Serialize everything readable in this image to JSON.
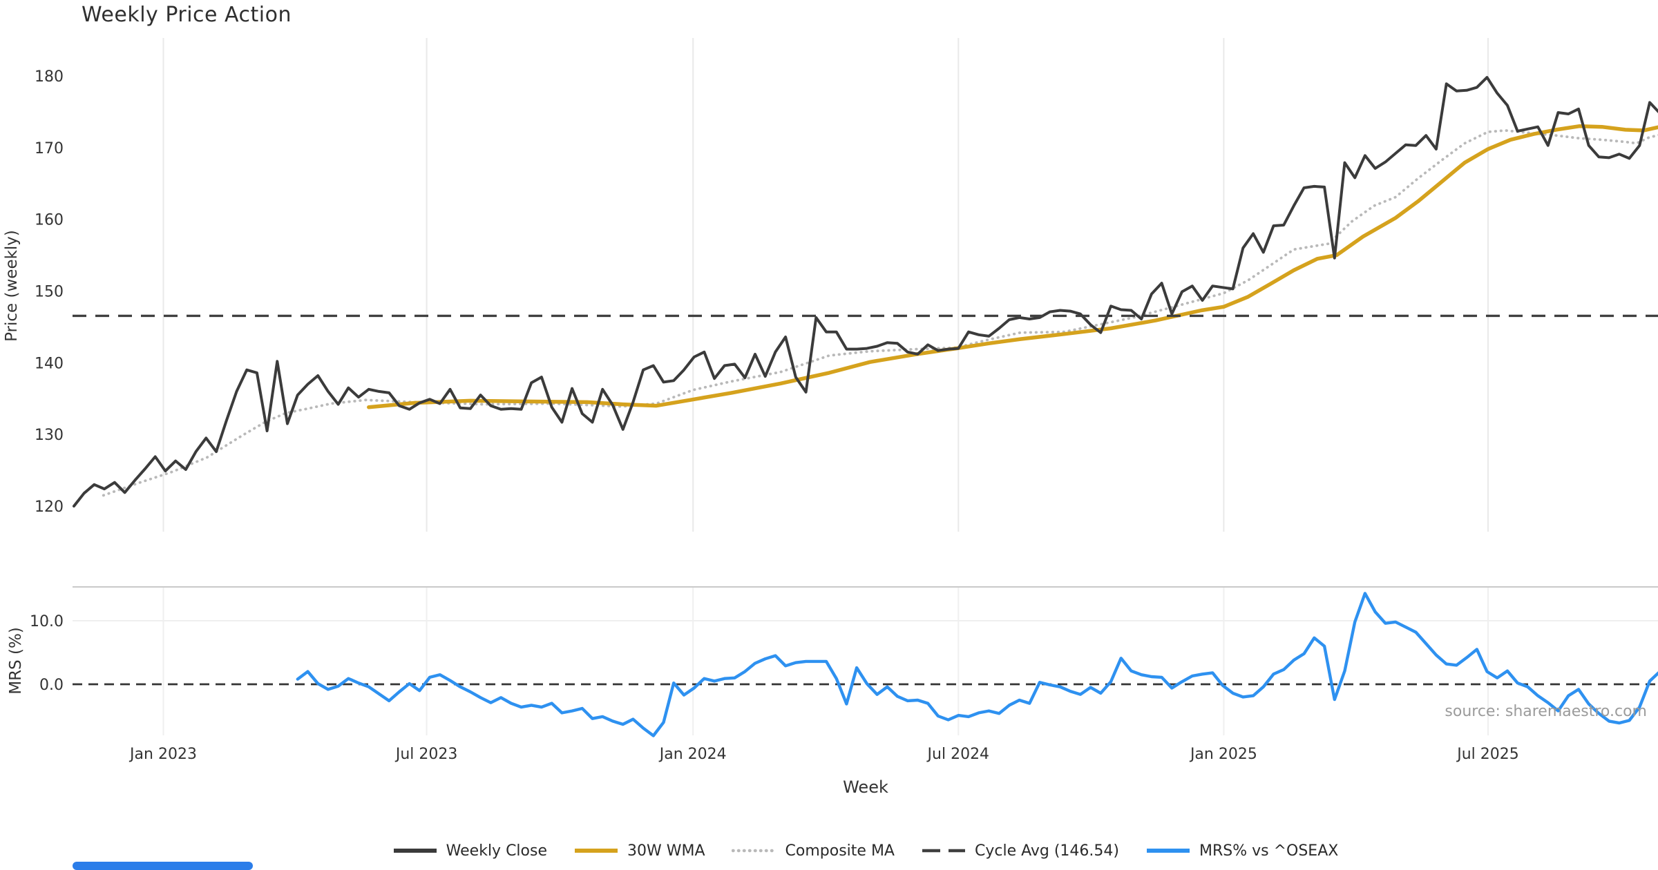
{
  "title": "Weekly Price Action",
  "source_note": "source: sharemaestro.com",
  "colors": {
    "weekly_close": "#3b3b3b",
    "wma": "#d5a21d",
    "composite": "#b9b9b9",
    "cycle_avg": "#3f3f3f",
    "mrs": "#2e91f0",
    "grid": "#e9e9e9",
    "grid_faint": "#efefef",
    "spine": "#c9c9c9",
    "text": "#333333",
    "muted": "#9b9b9b",
    "scrollbar": "#2b7de9"
  },
  "legend": {
    "items": [
      {
        "label": "Weekly Close",
        "series": "weekly_close",
        "style": "solid"
      },
      {
        "label": "30W WMA",
        "series": "wma",
        "style": "solid"
      },
      {
        "label": "Composite MA",
        "series": "composite",
        "style": "dotted"
      },
      {
        "label": "Cycle Avg (146.54)",
        "series": "cycle_avg",
        "style": "dashed"
      },
      {
        "label": "MRS% vs ^OSEAX",
        "series": "mrs",
        "style": "solid"
      }
    ]
  },
  "chart_data": {
    "type": "line",
    "x": {
      "label": "Week",
      "ticks": [
        {
          "label": "Jan 2023",
          "week": 8.8
        },
        {
          "label": "Jul 2023",
          "week": 34.7
        },
        {
          "label": "Jan 2024",
          "week": 60.9
        },
        {
          "label": "Jul 2024",
          "week": 87.0
        },
        {
          "label": "Jan 2025",
          "week": 113.1
        },
        {
          "label": "Jul 2025",
          "week": 139.1
        }
      ],
      "weeks_total": 157
    },
    "price_panel": {
      "ylabel": "Price (weekly)",
      "yticks": [
        {
          "v": 180,
          "label": "180"
        },
        {
          "v": 170,
          "label": "170"
        },
        {
          "v": 160,
          "label": "160"
        },
        {
          "v": 150,
          "label": "150"
        },
        {
          "v": 140,
          "label": "140"
        },
        {
          "v": 130,
          "label": "130"
        },
        {
          "v": 120,
          "label": "120"
        }
      ],
      "cycle_avg": 146.54,
      "weekly_close": {
        "name": "Weekly Close",
        "start_week": 0,
        "values": [
          120.0,
          121.8,
          123.0,
          122.4,
          123.3,
          121.9,
          123.6,
          125.2,
          126.9,
          124.9,
          126.3,
          125.1,
          127.6,
          129.5,
          127.6,
          131.9,
          136.0,
          139.0,
          138.6,
          130.5,
          140.2,
          131.5,
          135.5,
          137.0,
          138.2,
          136.0,
          134.2,
          136.5,
          135.2,
          136.3,
          136.0,
          135.8,
          134.0,
          133.5,
          134.4,
          134.9,
          134.3,
          136.3,
          133.7,
          133.6,
          135.5,
          134.0,
          133.5,
          133.6,
          133.5,
          137.2,
          138.0,
          133.8,
          131.7,
          136.4,
          132.9,
          131.7,
          136.3,
          134.1,
          130.7,
          134.5,
          139.0,
          139.6,
          137.3,
          137.5,
          139.0,
          140.8,
          141.5,
          137.8,
          139.6,
          139.8,
          137.9,
          141.2,
          138.1,
          141.5,
          143.6,
          138.0,
          135.9,
          146.3,
          144.3,
          144.3,
          141.9,
          141.9,
          142.0,
          142.3,
          142.8,
          142.7,
          141.5,
          141.2,
          142.5,
          141.7,
          141.9,
          142.0,
          144.3,
          143.9,
          143.7,
          144.8,
          146.0,
          146.3,
          146.1,
          146.3,
          147.1,
          147.3,
          147.2,
          146.8,
          145.3,
          144.2,
          147.9,
          147.4,
          147.3,
          146.1,
          149.6,
          151.1,
          146.8,
          149.9,
          150.7,
          148.7,
          150.7,
          150.5,
          150.3,
          156.0,
          158.0,
          155.4,
          159.1,
          159.2,
          161.9,
          164.4,
          164.6,
          164.5,
          154.6,
          167.9,
          165.8,
          168.9,
          167.1,
          168.0,
          169.2,
          170.4,
          170.3,
          171.7,
          169.8,
          178.9,
          177.9,
          178.0,
          178.4,
          179.8,
          177.6,
          175.9,
          172.3,
          172.6,
          172.9,
          170.3,
          174.9,
          174.7,
          175.4,
          170.3,
          168.7,
          168.6,
          169.1,
          168.5,
          170.3,
          176.3,
          174.8
        ]
      },
      "wma30": {
        "name": "30W WMA",
        "points": [
          [
            29,
            133.8
          ],
          [
            33.5,
            134.4
          ],
          [
            39,
            134.7
          ],
          [
            44.4,
            134.6
          ],
          [
            50.5,
            134.5
          ],
          [
            54,
            134.2
          ],
          [
            57.3,
            134.0
          ],
          [
            61,
            134.9
          ],
          [
            64.7,
            135.8
          ],
          [
            69.5,
            137.1
          ],
          [
            74.3,
            138.6
          ],
          [
            78.3,
            140.1
          ],
          [
            82.9,
            141.2
          ],
          [
            86.8,
            142.0
          ],
          [
            90,
            142.7
          ],
          [
            93.1,
            143.3
          ],
          [
            97.4,
            144.0
          ],
          [
            102,
            144.8
          ],
          [
            106.4,
            145.9
          ],
          [
            110.9,
            147.3
          ],
          [
            113.1,
            147.8
          ],
          [
            115.5,
            149.2
          ],
          [
            117.7,
            151.0
          ],
          [
            120,
            152.9
          ],
          [
            122.3,
            154.5
          ],
          [
            124.2,
            155.0
          ],
          [
            126.8,
            157.6
          ],
          [
            130,
            160.2
          ],
          [
            132.2,
            162.5
          ],
          [
            134.5,
            165.2
          ],
          [
            136.8,
            167.9
          ],
          [
            139.1,
            169.8
          ],
          [
            141.3,
            171.1
          ],
          [
            143.6,
            171.9
          ],
          [
            145.8,
            172.5
          ],
          [
            148.1,
            173.0
          ],
          [
            150.3,
            172.9
          ],
          [
            152.6,
            172.5
          ],
          [
            154.4,
            172.4
          ],
          [
            156,
            172.9
          ]
        ]
      },
      "composite": {
        "name": "Composite MA",
        "points": [
          [
            2.9,
            121.5
          ],
          [
            6.3,
            123.2
          ],
          [
            9.7,
            124.8
          ],
          [
            13.1,
            126.8
          ],
          [
            16.5,
            129.8
          ],
          [
            18.9,
            131.8
          ],
          [
            20.9,
            133.0
          ],
          [
            23,
            133.6
          ],
          [
            25.3,
            134.3
          ],
          [
            28.7,
            134.8
          ],
          [
            33.5,
            134.5
          ],
          [
            40.3,
            134.2
          ],
          [
            47.1,
            134.3
          ],
          [
            53.9,
            133.9
          ],
          [
            57.3,
            134.3
          ],
          [
            60.9,
            136.2
          ],
          [
            64.7,
            137.4
          ],
          [
            69.5,
            138.7
          ],
          [
            74.3,
            141.0
          ],
          [
            78.3,
            141.6
          ],
          [
            82.9,
            141.9
          ],
          [
            86.8,
            142.1
          ],
          [
            89.9,
            143.2
          ],
          [
            93.1,
            144.2
          ],
          [
            97.4,
            144.3
          ],
          [
            104.2,
            146.3
          ],
          [
            108.7,
            148.0
          ],
          [
            113.1,
            149.7
          ],
          [
            115.5,
            151.5
          ],
          [
            117.7,
            153.6
          ],
          [
            120,
            155.8
          ],
          [
            123.4,
            156.6
          ],
          [
            125.7,
            159.7
          ],
          [
            127.9,
            161.9
          ],
          [
            130,
            163.1
          ],
          [
            132.2,
            165.7
          ],
          [
            134.5,
            168.2
          ],
          [
            136.8,
            170.6
          ],
          [
            139.1,
            172.2
          ],
          [
            140.8,
            172.4
          ],
          [
            143.6,
            172.0
          ],
          [
            145.8,
            171.7
          ],
          [
            148.1,
            171.3
          ],
          [
            150.3,
            171.1
          ],
          [
            152.6,
            170.8
          ],
          [
            153.7,
            170.6
          ],
          [
            154.9,
            171.4
          ],
          [
            156,
            171.8
          ]
        ]
      }
    },
    "mrs_panel": {
      "ylabel": "MRS (%)",
      "yticks": [
        {
          "v": 10.0,
          "label": "10.0"
        },
        {
          "v": 0.0,
          "label": "0.0"
        }
      ],
      "zero_line": 0.0,
      "mrs": {
        "name": "MRS% vs ^OSEAX",
        "start_week": 22,
        "values": [
          0.8,
          2.0,
          0.1,
          -0.8,
          -0.3,
          0.9,
          0.2,
          -0.4,
          -1.5,
          -2.6,
          -1.2,
          0.1,
          -1.0,
          1.1,
          1.5,
          0.6,
          -0.4,
          -1.2,
          -2.1,
          -2.9,
          -2.1,
          -3.0,
          -3.6,
          -3.3,
          -3.6,
          -3.0,
          -4.5,
          -4.2,
          -3.8,
          -5.4,
          -5.1,
          -5.8,
          -6.3,
          -5.5,
          -6.9,
          -8.1,
          -6.0,
          0.2,
          -1.7,
          -0.6,
          0.9,
          0.5,
          0.9,
          1.0,
          2.0,
          3.3,
          4.0,
          4.5,
          2.9,
          3.4,
          3.6,
          3.6,
          3.6,
          0.9,
          -3.1,
          2.6,
          0.1,
          -1.6,
          -0.4,
          -1.9,
          -2.6,
          -2.5,
          -3.0,
          -5.0,
          -5.6,
          -4.9,
          -5.1,
          -4.5,
          -4.2,
          -4.6,
          -3.3,
          -2.5,
          -3.0,
          0.3,
          -0.1,
          -0.4,
          -1.1,
          -1.6,
          -0.5,
          -1.4,
          0.4,
          4.1,
          2.1,
          1.5,
          1.2,
          1.1,
          -0.6,
          0.4,
          1.3,
          1.6,
          1.8,
          -0.2,
          -1.4,
          -2.0,
          -1.8,
          -0.4,
          1.6,
          2.3,
          3.8,
          4.8,
          7.3,
          6.0,
          -2.4,
          2.1,
          9.8,
          14.3,
          11.4,
          9.6,
          9.8,
          9.0,
          8.2,
          6.4,
          4.6,
          3.2,
          3.0,
          4.2,
          5.5,
          2.0,
          1.0,
          2.1,
          0.2,
          -0.4,
          -1.8,
          -2.9,
          -4.2,
          -1.8,
          -0.8,
          -3.1,
          -4.6,
          -5.8,
          -6.1,
          -5.7,
          -3.6,
          0.5,
          2.0
        ]
      }
    }
  },
  "bottom_scrollbar": {
    "present": true
  }
}
